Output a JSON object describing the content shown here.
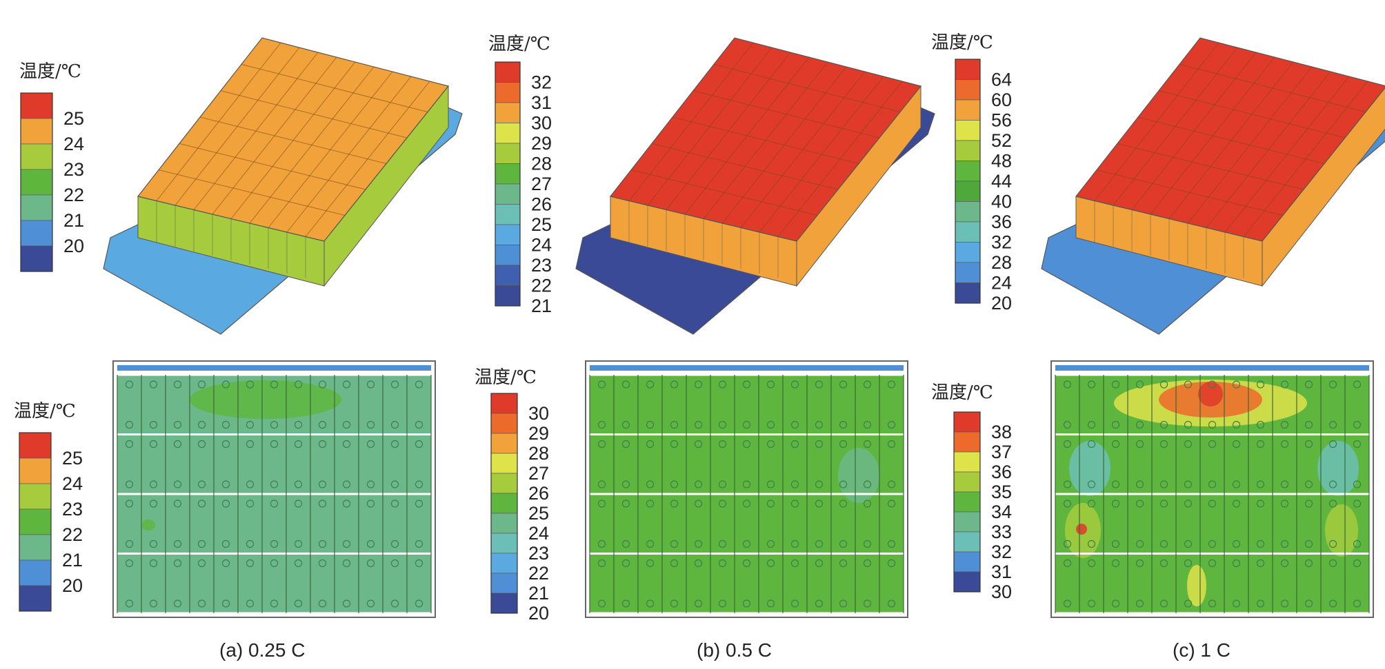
{
  "legend_title": "温度/℃",
  "colors": {
    "dark_blue": "#3a4a96",
    "blue": "#4f8fd6",
    "light_blue": "#5aa9e0",
    "teal": "#6cbfb6",
    "sea_green": "#6db88a",
    "green": "#5eb63e",
    "yellow_green": "#a6cc3e",
    "yellow": "#dfe34a",
    "orange": "#f1a23b",
    "orange_red": "#ec6a2c",
    "red": "#e03a2a"
  },
  "panels": [
    {
      "caption": "(a) 0.25 C",
      "top_legend": {
        "values": [
          "25",
          "24",
          "23",
          "22",
          "21",
          "20"
        ],
        "colors": [
          "#e03a2a",
          "#f1a23b",
          "#a6cc3e",
          "#5eb63e",
          "#6db88a",
          "#4f8fd6",
          "#3a4a96"
        ]
      },
      "bottom_legend": {
        "values": [
          "25",
          "24",
          "23",
          "22",
          "21",
          "20"
        ],
        "colors": [
          "#e03a2a",
          "#f1a23b",
          "#a6cc3e",
          "#5eb63e",
          "#6db88a",
          "#4f8fd6",
          "#3a4a96"
        ]
      }
    },
    {
      "caption": "(b) 0.5 C",
      "top_legend": {
        "values": [
          "32",
          "31",
          "30",
          "29",
          "28",
          "27",
          "26",
          "25",
          "24",
          "23",
          "22",
          "21"
        ],
        "colors": [
          "#e03a2a",
          "#ec6a2c",
          "#f1a23b",
          "#dfe34a",
          "#a6cc3e",
          "#5eb63e",
          "#6db88a",
          "#6cbfb6",
          "#5aa9e0",
          "#4f8fd6",
          "#3f5fb0",
          "#3a4a96"
        ]
      },
      "bottom_legend": {
        "values": [
          "30",
          "29",
          "28",
          "27",
          "26",
          "25",
          "24",
          "23",
          "22",
          "21",
          "20"
        ],
        "colors": [
          "#e03a2a",
          "#ec6a2c",
          "#f1a23b",
          "#dfe34a",
          "#a6cc3e",
          "#5eb63e",
          "#6db88a",
          "#6cbfb6",
          "#5aa9e0",
          "#4f8fd6",
          "#3a4a96"
        ]
      }
    },
    {
      "caption": "(c) 1 C",
      "top_legend": {
        "values": [
          "64",
          "60",
          "56",
          "52",
          "48",
          "44",
          "40",
          "36",
          "32",
          "28",
          "24",
          "20"
        ],
        "colors": [
          "#e03a2a",
          "#ec6a2c",
          "#f1a23b",
          "#dfe34a",
          "#a6cc3e",
          "#5eb63e",
          "#4fa83a",
          "#6db88a",
          "#6cbfb6",
          "#5aa9e0",
          "#4f8fd6",
          "#3a4a96"
        ]
      },
      "bottom_legend": {
        "values": [
          "38",
          "37",
          "36",
          "35",
          "34",
          "33",
          "32",
          "31",
          "30"
        ],
        "colors": [
          "#e03a2a",
          "#ec6a2c",
          "#dfe34a",
          "#a6cc3e",
          "#5eb63e",
          "#6db88a",
          "#6cbfb6",
          "#4f8fd6",
          "#3a4a96"
        ]
      }
    }
  ],
  "views": {
    "iso": [
      {
        "top_color": "#f1a23b",
        "side_color": "#a6cc3e",
        "base_color": "#5aa9e0"
      },
      {
        "top_color": "#e03a2a",
        "side_color": "#f1a23b",
        "base_color": "#3a4a96"
      },
      {
        "top_color": "#e03a2a",
        "side_color": "#f1a23b",
        "base_color": "#4f8fd6"
      }
    ],
    "plan": [
      {
        "fill": "#6db88a",
        "hot": "#5eb63e"
      },
      {
        "fill": "#5eb63e",
        "hot": "#a6cc3e"
      },
      {
        "fill": "#5eb63e",
        "hot": "#e03a2a"
      }
    ]
  }
}
